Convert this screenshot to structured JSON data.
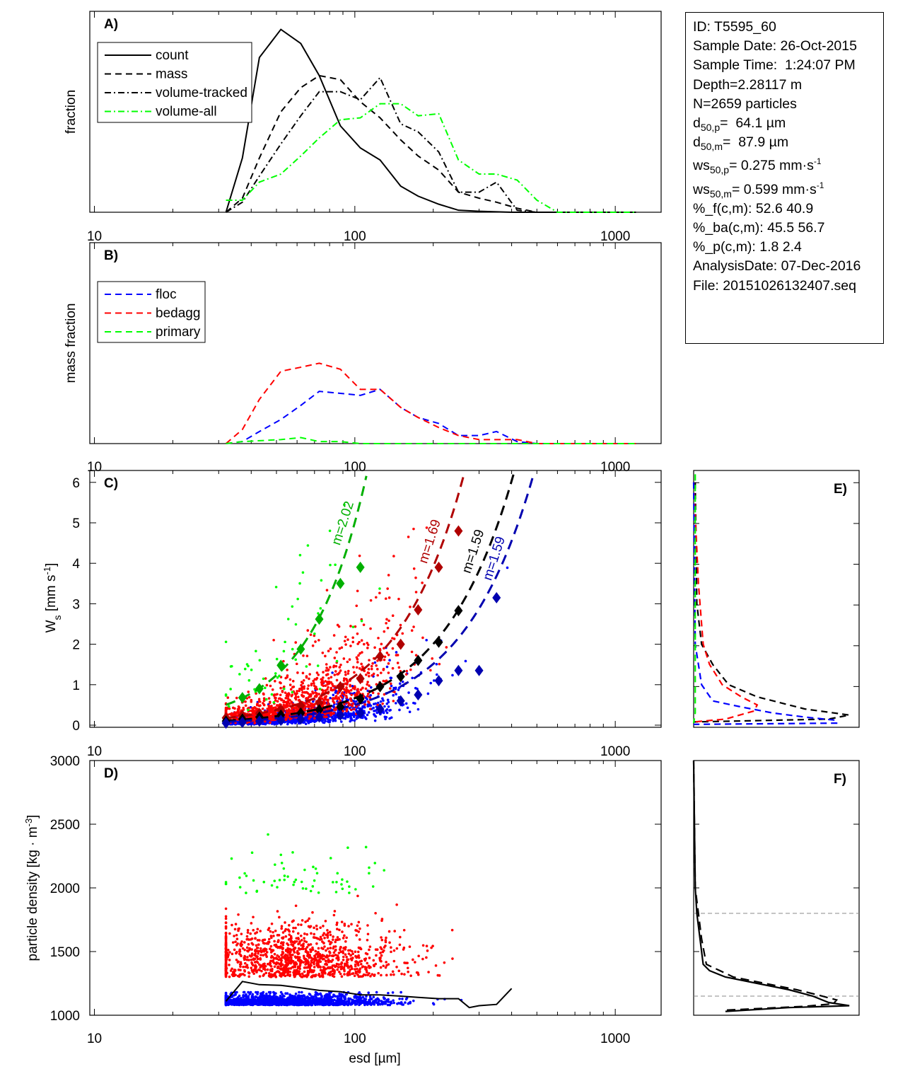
{
  "info_box": {
    "id": "ID: T5595_60",
    "sample_date": "Sample Date: 26-Oct-2015",
    "sample_time": "Sample Time:  1:24:07 PM",
    "depth": "Depth=2.28117 m",
    "n": "N=2659 particles",
    "d50p_sym": "d",
    "d50p_sub": "50,p",
    "d50p_val": "=  64.1 µm",
    "d50m_sym": "d",
    "d50m_sub": "50,m",
    "d50m_val": "=  87.9 µm",
    "ws50p_sym": "ws",
    "ws50p_sub": "50,p",
    "ws50p_val": "= 0.275 mm·s",
    "ws50p_sup": "-1",
    "ws50m_sym": "ws",
    "ws50m_sub": "50,m",
    "ws50m_val": "= 0.599 mm·s",
    "ws50m_sup": "-1",
    "pf": "%_f(c,m): 52.6 40.9",
    "pba": "%_ba(c,m): 45.5 56.7",
    "pp": "%_p(c,m): 1.8 2.4",
    "analysis_date": "AnalysisDate: 07-Dec-2016",
    "file": "File: 20151026132407.seq"
  },
  "colors": {
    "floc": "#0000ff",
    "bedagg": "#ff0000",
    "primary": "#00ff00",
    "floc_dark": "#0000b0",
    "bedagg_dark": "#b00000",
    "primary_dark": "#00b000",
    "black": "#000000",
    "ref_line": "#888888"
  },
  "chart_data": [
    {
      "panel": "A)",
      "type": "line",
      "ylabel": "fraction",
      "xscale": "log",
      "xlim": [
        9.6,
        1500
      ],
      "ylim": [
        0,
        1
      ],
      "xticks": [
        10,
        100,
        1000
      ],
      "xtick_labels": [
        "10",
        "100",
        "1000"
      ],
      "legend": "top-left",
      "series": [
        {
          "name": "count",
          "style": "solid",
          "color": "#000000",
          "x": [
            32,
            37,
            43,
            52,
            62,
            73,
            88,
            105,
            125,
            150,
            175,
            210,
            250,
            300,
            400,
            1200
          ],
          "y": [
            0,
            0.27,
            0.77,
            0.91,
            0.84,
            0.68,
            0.43,
            0.32,
            0.26,
            0.13,
            0.08,
            0.04,
            0.01,
            0.005,
            0,
            0
          ]
        },
        {
          "name": "mass",
          "style": "dash",
          "color": "#000000",
          "x": [
            32,
            37,
            43,
            52,
            62,
            73,
            88,
            105,
            125,
            150,
            175,
            210,
            250,
            300,
            350,
            420,
            500,
            1200
          ],
          "y": [
            0,
            0.07,
            0.27,
            0.5,
            0.62,
            0.68,
            0.66,
            0.55,
            0.47,
            0.36,
            0.28,
            0.21,
            0.1,
            0.07,
            0.05,
            0.02,
            0,
            0
          ]
        },
        {
          "name": "volume-tracked",
          "style": "dashdot",
          "color": "#000000",
          "x": [
            32,
            37,
            43,
            52,
            62,
            73,
            88,
            105,
            125,
            150,
            175,
            210,
            250,
            300,
            350,
            420,
            500,
            1200
          ],
          "y": [
            0,
            0.05,
            0.18,
            0.34,
            0.48,
            0.6,
            0.6,
            0.56,
            0.67,
            0.44,
            0.4,
            0.3,
            0.1,
            0.1,
            0.15,
            0.01,
            0,
            0
          ]
        },
        {
          "name": "volume-all",
          "style": "dashdot",
          "color": "#00ff00",
          "x": [
            32,
            37,
            43,
            52,
            62,
            73,
            88,
            105,
            125,
            150,
            175,
            210,
            250,
            300,
            350,
            420,
            500,
            600,
            1200
          ],
          "y": [
            0.06,
            0.06,
            0.15,
            0.19,
            0.28,
            0.37,
            0.46,
            0.47,
            0.54,
            0.54,
            0.48,
            0.49,
            0.26,
            0.19,
            0.19,
            0.16,
            0.06,
            0,
            0
          ]
        }
      ]
    },
    {
      "panel": "B)",
      "type": "line",
      "ylabel": "mass fraction",
      "xscale": "log",
      "xlim": [
        9.6,
        1500
      ],
      "ylim": [
        0,
        1
      ],
      "xticks": [
        10,
        100,
        1000
      ],
      "xtick_labels": [
        "10",
        "100",
        "1000"
      ],
      "legend": "top-left",
      "series": [
        {
          "name": "floc",
          "style": "dash",
          "color": "#0000ff",
          "x": [
            32,
            37,
            43,
            52,
            62,
            73,
            88,
            105,
            125,
            150,
            175,
            210,
            250,
            300,
            350,
            420,
            500,
            1200
          ],
          "y": [
            0,
            0.01,
            0.06,
            0.12,
            0.19,
            0.26,
            0.25,
            0.24,
            0.27,
            0.18,
            0.13,
            0.1,
            0.04,
            0.04,
            0.06,
            0.01,
            0,
            0
          ]
        },
        {
          "name": "bedagg",
          "style": "dash",
          "color": "#ff0000",
          "x": [
            32,
            37,
            43,
            52,
            62,
            73,
            88,
            105,
            125,
            150,
            175,
            210,
            250,
            300,
            350,
            420,
            500,
            1200
          ],
          "y": [
            0,
            0.07,
            0.22,
            0.36,
            0.38,
            0.4,
            0.37,
            0.27,
            0.27,
            0.18,
            0.13,
            0.08,
            0.04,
            0.02,
            0.02,
            0.02,
            0,
            0
          ]
        },
        {
          "name": "primary",
          "style": "dash",
          "color": "#00ff00",
          "x": [
            32,
            37,
            52,
            62,
            73,
            88,
            105,
            1200
          ],
          "y": [
            0,
            0.01,
            0.02,
            0.03,
            0.01,
            0.01,
            0,
            0
          ]
        }
      ]
    },
    {
      "panel": "C)",
      "type": "scatter",
      "ylabel": "W",
      "ylabel_sub": "s",
      "ylabel_rest": " [mm s",
      "ylabel_sup": "-1",
      "ylabel_end": "]",
      "xscale": "log",
      "xlim": [
        9.6,
        1500
      ],
      "ylim": [
        0,
        6.3
      ],
      "xticks": [
        10,
        100,
        1000
      ],
      "xtick_labels": [
        "10",
        "100",
        "1000"
      ],
      "yticks": [
        0,
        1,
        2,
        3,
        4,
        5,
        6
      ],
      "binned": [
        {
          "class": "primary",
          "x": [
            37,
            43,
            52,
            62,
            73,
            88,
            105
          ],
          "y": [
            0.68,
            0.9,
            1.48,
            1.88,
            2.62,
            3.5,
            3.9
          ]
        },
        {
          "class": "bedagg",
          "x": [
            32,
            37,
            43,
            52,
            62,
            73,
            88,
            105,
            125,
            150,
            175,
            210,
            250
          ],
          "y": [
            0.18,
            0.24,
            0.29,
            0.38,
            0.48,
            0.55,
            0.95,
            1.15,
            1.7,
            2.0,
            2.85,
            3.9,
            4.8
          ]
        },
        {
          "class": "all",
          "x": [
            32,
            37,
            43,
            52,
            62,
            73,
            88,
            105,
            125,
            150,
            175,
            210,
            250
          ],
          "y": [
            0.1,
            0.15,
            0.2,
            0.25,
            0.3,
            0.38,
            0.45,
            0.65,
            0.95,
            1.2,
            1.6,
            2.05,
            2.83
          ]
        },
        {
          "class": "floc",
          "x": [
            32,
            37,
            43,
            52,
            62,
            73,
            88,
            105,
            125,
            150,
            175,
            210,
            250,
            300,
            350
          ],
          "y": [
            0.05,
            0.07,
            0.1,
            0.12,
            0.15,
            0.2,
            0.25,
            0.3,
            0.4,
            0.6,
            0.75,
            1.1,
            1.35,
            1.35,
            3.15
          ]
        }
      ],
      "fits": [
        {
          "class": "primary",
          "a": 0.000457,
          "m": 2.02,
          "label": "m=2.02"
        },
        {
          "class": "bedagg",
          "a": 0.000506,
          "m": 1.69,
          "label": "m=1.69"
        },
        {
          "class": "all",
          "a": 0.00044,
          "m": 1.59,
          "label": "m=1.59"
        },
        {
          "class": "floc",
          "a": 0.000332,
          "m": 1.59,
          "label": "m=1.59"
        }
      ]
    },
    {
      "panel": "D)",
      "type": "scatter",
      "ylabel": "particle density [kg · m",
      "ylabel_sup": "-3",
      "ylabel_end": "]",
      "xlabel": "esd [µm]",
      "xscale": "log",
      "xlim": [
        9.6,
        1500
      ],
      "ylim": [
        1000,
        3000
      ],
      "xticks": [
        10,
        100,
        1000
      ],
      "xtick_labels": [
        "10",
        "100",
        "1000"
      ],
      "yticks": [
        1000,
        1500,
        2000,
        2500,
        3000
      ],
      "median_line": {
        "x": [
          32,
          37,
          43,
          52,
          62,
          73,
          88,
          105,
          125,
          150,
          175,
          210,
          250,
          275,
          300,
          350,
          400
        ],
        "y": [
          1110,
          1265,
          1240,
          1235,
          1215,
          1195,
          1185,
          1160,
          1160,
          1150,
          1140,
          1130,
          1130,
          1060,
          1075,
          1085,
          1210
        ]
      }
    },
    {
      "panel": "E)",
      "type": "line",
      "ylim": [
        0,
        6.3
      ],
      "xlim": [
        0,
        1
      ],
      "series": [
        {
          "class": "all",
          "style": "dash",
          "ws": [
            6,
            3,
            2,
            1.5,
            1,
            0.7,
            0.4,
            0.25,
            0.15,
            0.08
          ],
          "frac": [
            0.01,
            0.02,
            0.05,
            0.12,
            0.22,
            0.4,
            0.7,
            0.98,
            0.85,
            0
          ]
        },
        {
          "class": "bedagg",
          "style": "dash",
          "ws": [
            6,
            3.5,
            2,
            1.5,
            1,
            0.7,
            0.5,
            0.35,
            0.15,
            0.08
          ],
          "frac": [
            0,
            0.03,
            0.06,
            0.1,
            0.18,
            0.3,
            0.4,
            0.38,
            0.2,
            0
          ]
        },
        {
          "class": "floc",
          "style": "dash",
          "ws": [
            6,
            2,
            1,
            0.6,
            0.45,
            0.3,
            0.2,
            0.12,
            0.05,
            0.02
          ],
          "frac": [
            0,
            0.01,
            0.05,
            0.12,
            0.3,
            0.5,
            0.7,
            0.9,
            0.9,
            0
          ]
        },
        {
          "class": "primary",
          "style": "dash",
          "ws": [
            6.2,
            3,
            1,
            0.3,
            0.05
          ],
          "frac": [
            0.01,
            0.01,
            0.01,
            0.01,
            0
          ]
        }
      ]
    },
    {
      "panel": "F)",
      "type": "line",
      "ylim": [
        1000,
        3000
      ],
      "xlim": [
        0,
        1
      ],
      "ref_lines": [
        1800,
        1150
      ],
      "series": [
        {
          "style": "solid",
          "rho": [
            3000,
            2000,
            1800,
            1600,
            1400,
            1350,
            1300,
            1250,
            1200,
            1150,
            1100,
            1075,
            1060,
            1030
          ],
          "frac": [
            0,
            0.01,
            0.02,
            0.04,
            0.06,
            0.1,
            0.2,
            0.4,
            0.6,
            0.75,
            0.85,
            0.98,
            0.6,
            0.2
          ]
        },
        {
          "style": "dash",
          "rho": [
            3000,
            2000,
            1800,
            1600,
            1400,
            1300,
            1250,
            1200,
            1160,
            1120,
            1090,
            1070,
            1040
          ],
          "frac": [
            0,
            0.01,
            0.03,
            0.05,
            0.08,
            0.25,
            0.45,
            0.65,
            0.78,
            0.9,
            0.88,
            0.7,
            0.2
          ]
        }
      ]
    }
  ]
}
